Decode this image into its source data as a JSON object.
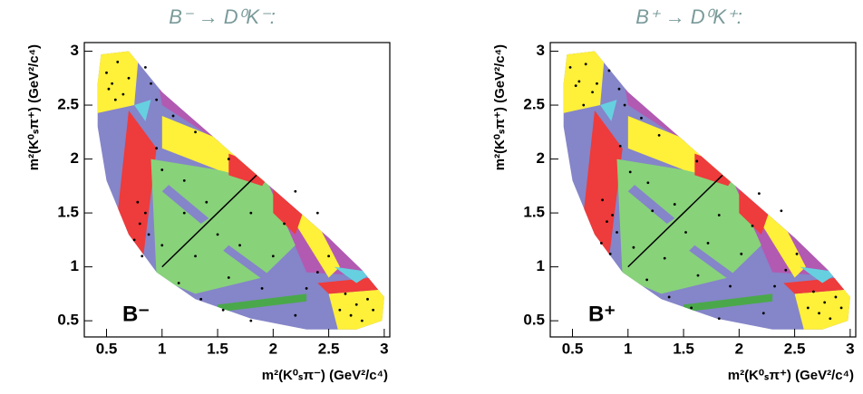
{
  "chart_data": [
    {
      "type": "scatter",
      "title": "B⁻ → D⁰K⁻:",
      "annotation": "B⁻",
      "x_label": "m²(K⁰ₛπ⁻) (GeV²/c⁴)",
      "y_label": "m²(K⁰ₛπ⁺) (GeV²/c⁴)",
      "xlim": [
        0.3,
        3.05
      ],
      "ylim": [
        0.35,
        3.08
      ],
      "xticks": [
        0.5,
        1,
        1.5,
        2,
        2.5,
        3
      ],
      "yticks": [
        0.5,
        1,
        1.5,
        2,
        2.5,
        3
      ],
      "series": [
        {
          "color": "#000000",
          "x": [
            0.5,
            0.55,
            0.6,
            0.65,
            0.7,
            0.58,
            0.52,
            0.85,
            0.9,
            0.95,
            1.1,
            1.3,
            1.6,
            0.78,
            0.8,
            0.75,
            0.82,
            0.88,
            0.85,
            1.0,
            1.2,
            1.3,
            1.4,
            1.5,
            1.6,
            1.7,
            1.8,
            1.9,
            2.0,
            2.1,
            1.15,
            1.35,
            1.55,
            1.8,
            2.2,
            2.3,
            2.4,
            2.5,
            2.6,
            2.7,
            2.75,
            2.8,
            2.85,
            2.9,
            2.65,
            2.2,
            2.4,
            1.0,
            1.2,
            0.95
          ],
          "values": [
            2.8,
            2.7,
            2.9,
            2.6,
            2.75,
            2.55,
            2.65,
            2.85,
            2.7,
            2.55,
            2.4,
            2.25,
            2.0,
            1.6,
            1.4,
            1.25,
            1.1,
            1.3,
            1.5,
            1.2,
            1.5,
            1.1,
            1.6,
            1.3,
            0.9,
            1.2,
            1.5,
            0.8,
            1.1,
            1.4,
            0.85,
            0.7,
            0.6,
            0.5,
            0.55,
            0.8,
            0.95,
            1.1,
            0.6,
            0.55,
            0.65,
            0.5,
            0.7,
            0.6,
            0.75,
            1.7,
            1.5,
            1.9,
            1.8,
            2.1
          ]
        }
      ]
    },
    {
      "type": "scatter",
      "title": "B⁺ → D⁰K⁺:",
      "annotation": "B⁺",
      "x_label": "m²(K⁰ₛπ⁺) (GeV²/c⁴)",
      "y_label": "m²(K⁰ₛπ⁺) (GeV²/c⁴)",
      "xlim": [
        0.3,
        3.05
      ],
      "ylim": [
        0.35,
        3.08
      ],
      "xticks": [
        0.5,
        1,
        1.5,
        2,
        2.5,
        3
      ],
      "yticks": [
        0.5,
        1,
        1.5,
        2,
        2.5,
        3
      ],
      "series": [
        {
          "color": "#000000",
          "x": [
            0.48,
            0.56,
            0.62,
            0.68,
            0.72,
            0.6,
            0.53,
            0.83,
            0.92,
            0.97,
            1.12,
            1.28,
            1.62,
            0.77,
            0.81,
            0.76,
            0.84,
            0.9,
            0.86,
            1.05,
            1.22,
            1.33,
            1.42,
            1.52,
            1.63,
            1.72,
            1.82,
            1.92,
            2.02,
            2.12,
            1.17,
            1.37,
            1.57,
            1.82,
            2.22,
            2.32,
            2.42,
            2.52,
            2.62,
            2.72,
            2.77,
            2.82,
            2.87,
            2.92,
            2.67,
            2.18,
            2.38,
            1.02,
            1.18,
            0.93
          ],
          "values": [
            2.85,
            2.72,
            2.88,
            2.62,
            2.7,
            2.5,
            2.68,
            2.82,
            2.65,
            2.5,
            2.38,
            2.22,
            1.98,
            1.62,
            1.42,
            1.22,
            1.12,
            1.32,
            1.48,
            1.18,
            1.52,
            1.08,
            1.58,
            1.32,
            0.92,
            1.22,
            1.48,
            0.82,
            1.12,
            1.38,
            0.88,
            0.72,
            0.62,
            0.52,
            0.57,
            0.82,
            0.97,
            1.12,
            0.62,
            0.57,
            0.67,
            0.52,
            0.72,
            0.62,
            0.77,
            1.68,
            1.52,
            1.88,
            1.78,
            2.12
          ]
        }
      ]
    }
  ]
}
